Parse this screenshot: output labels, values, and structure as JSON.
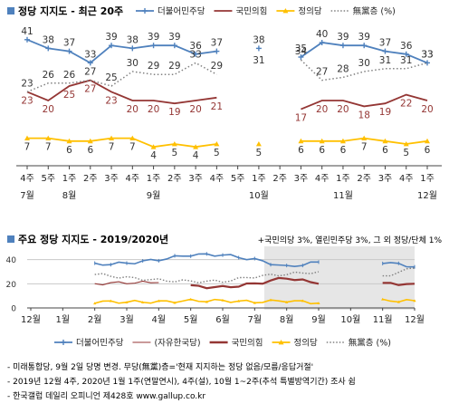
{
  "chart1": {
    "title": "정당 지지도 - 최근 20주",
    "legend": [
      {
        "label": "더불어민주당",
        "color": "#4f81bd",
        "style": "plus"
      },
      {
        "label": "국민의힘",
        "color": "#943634",
        "style": "solid"
      },
      {
        "label": "정의당",
        "color": "#ffc000",
        "style": "triangle"
      },
      {
        "label": "無黨층 (%)",
        "color": "#808080",
        "style": "dotted"
      }
    ],
    "week_labels": [
      "4주",
      "5주",
      "1주",
      "2주",
      "3주",
      "4주",
      "1주",
      "2주",
      "3주",
      "4주",
      "5주",
      "1주",
      "2주",
      "3주",
      "4주",
      "1주",
      "2주",
      "3주",
      "4주",
      "1주"
    ],
    "month_labels": [
      {
        "label": "7월",
        "index": 0
      },
      {
        "label": "8월",
        "index": 2
      },
      {
        "label": "9월",
        "index": 6
      },
      {
        "label": "10월",
        "index": 11
      },
      {
        "label": "11월",
        "index": 15
      },
      {
        "label": "12월",
        "index": 19
      }
    ],
    "note": "+국민의당 3%, 열린민주당 3%, 그 외 정당/단체 1%"
  },
  "chart2": {
    "title": "주요 정당 지지도 - 2019/2020년",
    "y_ticks": [
      "40",
      "20",
      "0"
    ],
    "month_labels": [
      "12월",
      "1월",
      "2월",
      "3월",
      "4월",
      "5월",
      "6월",
      "7월",
      "8월",
      "9월",
      "10월",
      "11월",
      "12월"
    ],
    "legend": [
      {
        "label": "더불어민주당",
        "color": "#4f81bd",
        "style": "plus"
      },
      {
        "label": "(자유한국당)",
        "color": "#943634",
        "style": "thin"
      },
      {
        "label": "국민의힘",
        "color": "#943634",
        "style": "thick"
      },
      {
        "label": "정의당",
        "color": "#ffc000",
        "style": "triangle"
      },
      {
        "label": "無黨층 (%)",
        "color": "#808080",
        "style": "dotted"
      }
    ]
  },
  "footnotes": [
    "- 미래통합당, 9월 2일 당명 변경. 무당(無黨)층='현재 지지하는 정당 없음/모름/응답거절'",
    "- 2019년 12월 4주, 2020년 1월 1주(연말연시), 4주(설), 10월 1~2주(추석 특별방역기간) 조사 쉼",
    "- 한국갤럽 데일리 오피니언 제428호 www.gallup.co.kr"
  ],
  "colors": {
    "accent_bullet": "#4f81bd",
    "democratic": "#4f81bd",
    "ppp": "#943634",
    "justice": "#ffc000",
    "independent": "#808080",
    "shade": "#e6e6e6"
  },
  "chart_data": [
    {
      "type": "line",
      "title": "정당 지지도 - 최근 20주",
      "categories": [
        "7월 4주",
        "7월 5주",
        "8월 1주",
        "8월 2주",
        "8월 3주",
        "8월 4주",
        "9월 1주",
        "9월 2주",
        "9월 3주",
        "9월 4주",
        "9월 5주",
        "10월 1주",
        "10월 2주",
        "10월 3주",
        "10월 4주",
        "11월 1주",
        "11월 2주",
        "11월 3주",
        "11월 4주",
        "12월 1주"
      ],
      "series": [
        {
          "name": "더불어민주당",
          "values": [
            41,
            38,
            37,
            33,
            39,
            38,
            39,
            39,
            36,
            37,
            null,
            38,
            null,
            35,
            40,
            39,
            39,
            37,
            36,
            33
          ]
        },
        {
          "name": "국민의힘",
          "values": [
            23,
            20,
            25,
            27,
            23,
            20,
            20,
            19,
            20,
            21,
            null,
            null,
            null,
            17,
            20,
            20,
            18,
            19,
            22,
            20
          ]
        },
        {
          "name": "정의당",
          "values": [
            7,
            7,
            6,
            6,
            7,
            7,
            4,
            5,
            4,
            5,
            null,
            5,
            null,
            6,
            6,
            6,
            7,
            6,
            5,
            6
          ]
        },
        {
          "name": "無黨층 (%)",
          "values": [
            23,
            26,
            26,
            27,
            25,
            30,
            29,
            29,
            33,
            29,
            null,
            31,
            null,
            34,
            27,
            28,
            30,
            31,
            31,
            33
          ]
        }
      ],
      "ylim": [
        0,
        50
      ],
      "legend": "top"
    },
    {
      "type": "line",
      "title": "주요 정당 지지도 - 2019/2020년",
      "categories": [
        "12월",
        "1월",
        "2월",
        "3월",
        "4월",
        "5월",
        "6월",
        "7월",
        "8월",
        "9월",
        "10월",
        "11월",
        "12월"
      ],
      "series": [
        {
          "name": "더불어민주당",
          "values": [
            40,
            null,
            36,
            37,
            40,
            44,
            44,
            40,
            34,
            38,
            null,
            38,
            34
          ]
        },
        {
          "name": "(자유한국당)",
          "values": [
            22,
            null,
            20,
            21,
            21,
            null,
            null,
            null,
            null,
            null,
            null,
            null,
            null
          ]
        },
        {
          "name": "국민의힘",
          "values": [
            null,
            null,
            null,
            null,
            null,
            18,
            17,
            20,
            25,
            20,
            null,
            20,
            20
          ]
        },
        {
          "name": "정의당",
          "values": [
            8,
            null,
            5,
            5,
            5,
            6,
            6,
            5,
            6,
            4,
            null,
            6,
            6
          ]
        },
        {
          "name": "無黨층 (%)",
          "values": [
            22,
            null,
            28,
            25,
            23,
            22,
            22,
            26,
            28,
            30,
            null,
            26,
            33
          ]
        }
      ],
      "ylim": [
        0,
        45
      ],
      "y_ticks": [
        0,
        20,
        40
      ],
      "legend": "bottom"
    }
  ]
}
